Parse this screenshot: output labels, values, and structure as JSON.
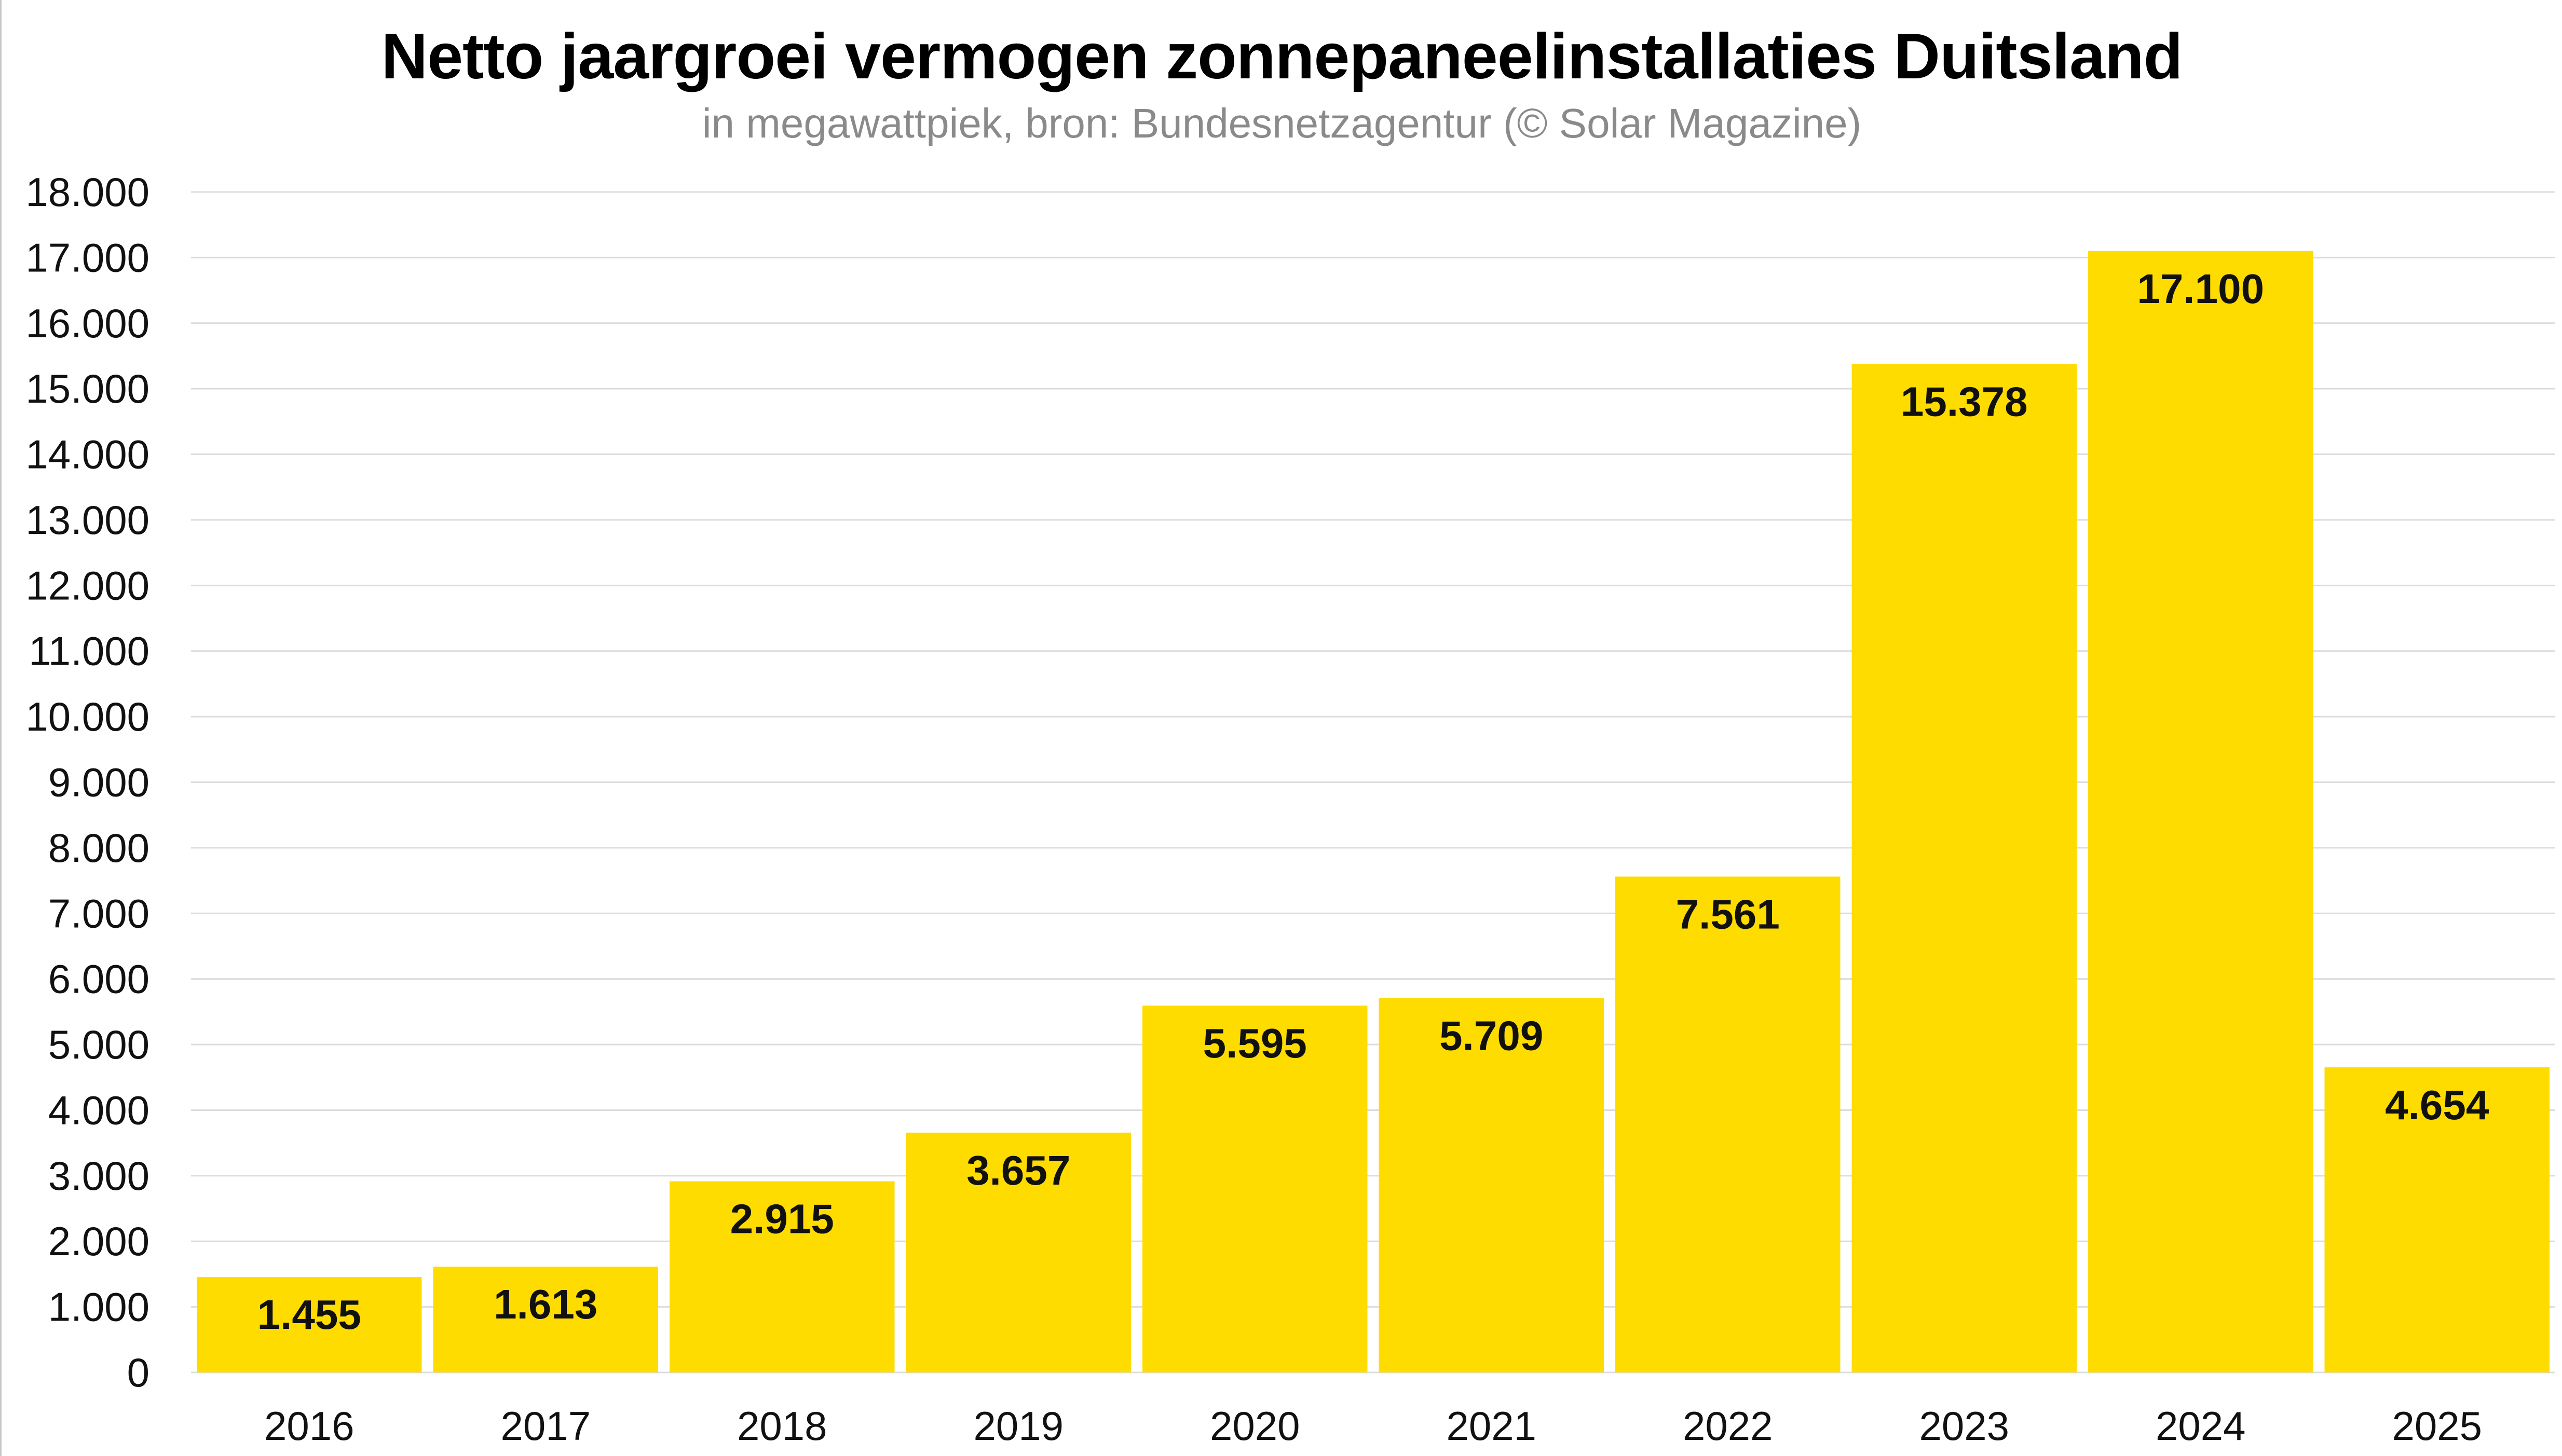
{
  "title": "Netto jaargroei vermogen zonnepaneelinstallaties Duitsland",
  "subtitle": "in megawattpiek, bron: Bundesnetzagentur (© Solar Magazine)",
  "colors": {
    "bar": "#FFDC00",
    "grid": "#dcdcdc",
    "text": "#111111",
    "subtitle": "#8a8a8a"
  },
  "chart_data": {
    "type": "bar",
    "title": "Netto jaargroei vermogen zonnepaneelinstallaties Duitsland",
    "subtitle": "in megawattpiek, bron: Bundesnetzagentur (© Solar Magazine)",
    "xlabel": "",
    "ylabel": "",
    "categories": [
      "2016",
      "2017",
      "2018",
      "2019",
      "2020",
      "2021",
      "2022",
      "2023",
      "2024",
      "2025"
    ],
    "values": [
      1455,
      1613,
      2915,
      3657,
      5595,
      5709,
      7561,
      15378,
      17100,
      4654
    ],
    "value_labels": [
      "1.455",
      "1.613",
      "2.915",
      "3.657",
      "5.595",
      "5.709",
      "7.561",
      "15.378",
      "17.100",
      "4.654"
    ],
    "ylim": [
      0,
      18000
    ],
    "y_ticks": [
      0,
      1000,
      2000,
      3000,
      4000,
      5000,
      6000,
      7000,
      8000,
      9000,
      10000,
      11000,
      12000,
      13000,
      14000,
      15000,
      16000,
      17000,
      18000
    ],
    "y_tick_labels": [
      "0",
      "1.000",
      "2.000",
      "3.000",
      "4.000",
      "5.000",
      "6.000",
      "7.000",
      "8.000",
      "9.000",
      "10.000",
      "11.000",
      "12.000",
      "13.000",
      "14.000",
      "15.000",
      "16.000",
      "17.000",
      "18.000"
    ],
    "grid": true,
    "legend": "none",
    "bar_color": "#FFDC00"
  }
}
